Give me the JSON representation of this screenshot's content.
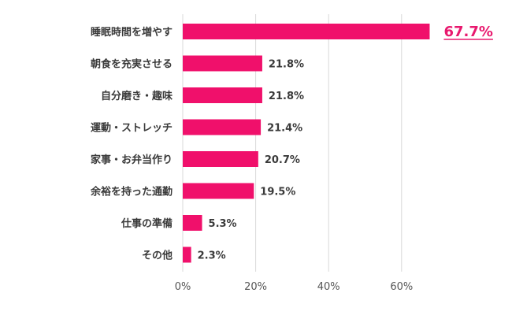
{
  "chart_data": {
    "type": "bar",
    "orientation": "horizontal",
    "categories": [
      "睡眠時間を増やす",
      "朝食を充実させる",
      "自分磨き・趣味",
      "運動・ストレッチ",
      "家事・お弁当作り",
      "余裕を持った通勤",
      "仕事の準備",
      "その他"
    ],
    "values": [
      67.7,
      21.8,
      21.8,
      21.4,
      20.7,
      19.5,
      5.3,
      2.3
    ],
    "value_labels": [
      "67.7%",
      "21.8%",
      "21.8%",
      "21.4%",
      "20.7%",
      "19.5%",
      "5.3%",
      "2.3%"
    ],
    "highlight_index": 0,
    "xlim": [
      0,
      60
    ],
    "x_ticks": [
      0,
      20,
      40,
      60
    ],
    "x_tick_labels": [
      "0%",
      "20%",
      "40%",
      "60%"
    ],
    "grid": true,
    "colors": {
      "bar": "#f0106b",
      "highlight_label": "#e8186e"
    }
  }
}
